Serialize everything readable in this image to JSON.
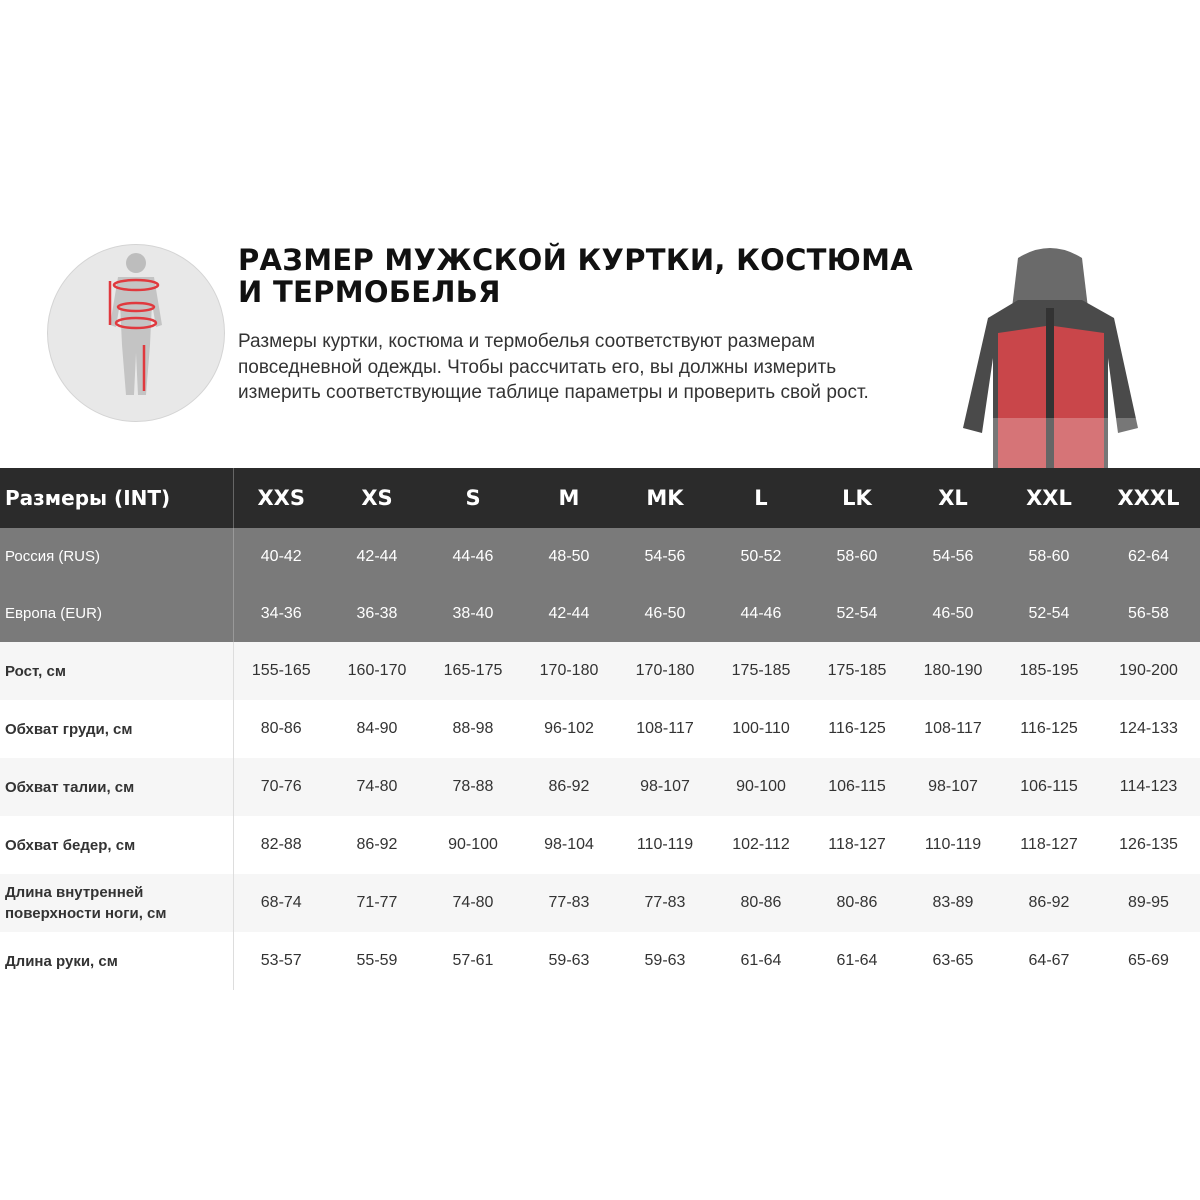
{
  "heading": {
    "title": "РАЗМЕР МУЖСКОЙ КУРТКИ, КОСТЮМА И ТЕРМОБЕЛЬЯ",
    "description": "Размеры куртки, костюма и термобелья соответствуют размерам повседневной одежды. Чтобы рассчитать его, вы должны измерить измерить соответствующие таблице параметры и проверить свой рост."
  },
  "colors": {
    "header_bg": "#2b2b2b",
    "region_bg": "#7a7a7a",
    "accent": "#e0393e"
  },
  "table": {
    "header_label": "Размеры (INT)",
    "sizes": [
      "XXS",
      "XS",
      "S",
      "M",
      "MK",
      "L",
      "LK",
      "XL",
      "XXL",
      "XXXL"
    ],
    "region_rows": [
      {
        "label": "Россия (RUS)",
        "values": [
          "40-42",
          "42-44",
          "44-46",
          "48-50",
          "54-56",
          "50-52",
          "58-60",
          "54-56",
          "58-60",
          "62-64"
        ]
      },
      {
        "label": "Европа (EUR)",
        "values": [
          "34-36",
          "36-38",
          "38-40",
          "42-44",
          "46-50",
          "44-46",
          "52-54",
          "46-50",
          "52-54",
          "56-58"
        ]
      }
    ],
    "measure_rows": [
      {
        "label": "Рост, см",
        "values": [
          "155-165",
          "160-170",
          "165-175",
          "170-180",
          "170-180",
          "175-185",
          "175-185",
          "180-190",
          "185-195",
          "190-200"
        ]
      },
      {
        "label": "Обхват груди, см",
        "values": [
          "80-86",
          "84-90",
          "88-98",
          "96-102",
          "108-117",
          "100-110",
          "116-125",
          "108-117",
          "116-125",
          "124-133"
        ]
      },
      {
        "label": "Обхват талии, см",
        "values": [
          "70-76",
          "74-80",
          "78-88",
          "86-92",
          "98-107",
          "90-100",
          "106-115",
          "98-107",
          "106-115",
          "114-123"
        ]
      },
      {
        "label": "Обхват бедер, см",
        "values": [
          "82-88",
          "86-92",
          "90-100",
          "98-104",
          "110-119",
          "102-112",
          "118-127",
          "110-119",
          "118-127",
          "126-135"
        ]
      },
      {
        "label": "Длина внутренней поверхности ноги, см",
        "values": [
          "68-74",
          "71-77",
          "74-80",
          "77-83",
          "77-83",
          "80-86",
          "80-86",
          "83-89",
          "86-92",
          "89-95"
        ]
      },
      {
        "label": "Длина руки, см",
        "values": [
          "53-57",
          "55-59",
          "57-61",
          "59-63",
          "59-63",
          "61-64",
          "61-64",
          "63-65",
          "64-67",
          "65-69"
        ]
      }
    ]
  }
}
